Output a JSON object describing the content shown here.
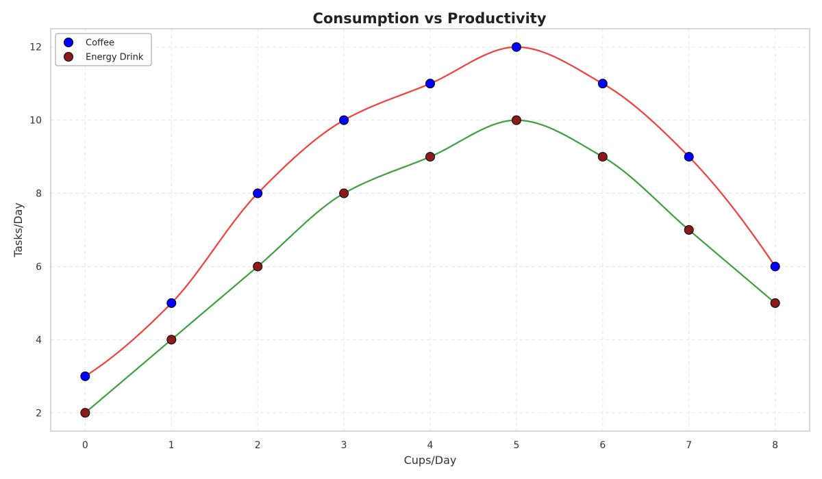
{
  "chart_data": {
    "type": "line",
    "title": "Consumption vs Productivity",
    "xlabel": "Cups/Day",
    "ylabel": "Tasks/Day",
    "x": [
      0,
      1,
      2,
      3,
      4,
      5,
      6,
      7,
      8
    ],
    "xlim": [
      -0.4,
      8.4
    ],
    "ylim": [
      1.5,
      12.5
    ],
    "xticks": [
      0,
      1,
      2,
      3,
      4,
      5,
      6,
      7,
      8
    ],
    "yticks": [
      2,
      4,
      6,
      8,
      10,
      12
    ],
    "grid": true,
    "legend_position": "upper-left",
    "series": [
      {
        "name": "Coffee",
        "values": [
          3,
          5,
          8,
          10,
          11,
          12,
          11,
          9,
          6
        ],
        "marker_color": "#0000ff",
        "line_color": "#ef4444"
      },
      {
        "name": "Energy Drink",
        "values": [
          2,
          4,
          6,
          8,
          9,
          10,
          9,
          7,
          5
        ],
        "marker_color": "#8b1a1a",
        "line_color": "#43a047"
      }
    ]
  }
}
